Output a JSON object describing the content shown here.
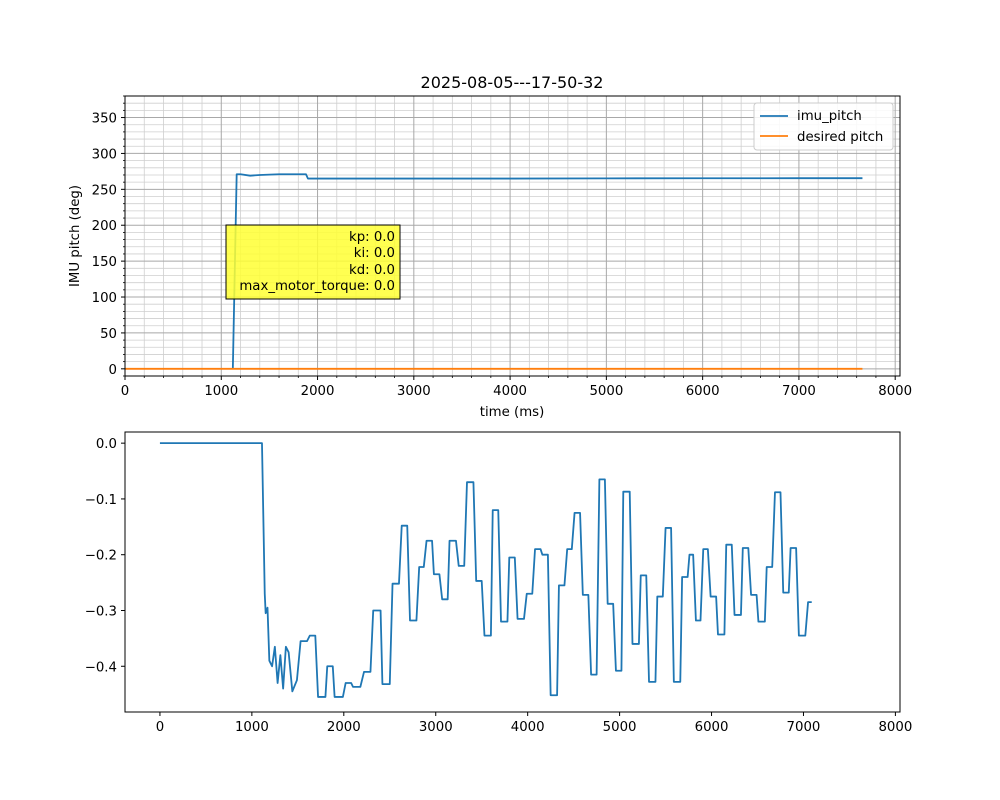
{
  "chart_data": [
    {
      "type": "line",
      "title": "2025-08-05---17-50-32",
      "xlabel": "time (ms)",
      "ylabel": "IMU pitch (deg)",
      "xlim": [
        0,
        8050
      ],
      "ylim": [
        -10,
        380
      ],
      "xticks": [
        0,
        1000,
        2000,
        3000,
        4000,
        5000,
        6000,
        7000,
        8000
      ],
      "yticks": [
        0,
        50,
        100,
        150,
        200,
        250,
        300,
        350
      ],
      "grid": true,
      "legend_position": "top-right",
      "series": [
        {
          "name": "imu_pitch",
          "color": "#1f77b4",
          "points": [
            [
              1120,
              0
            ],
            [
              1160,
              271
            ],
            [
              1200,
              271
            ],
            [
              1300,
              269
            ],
            [
              1400,
              270
            ],
            [
              1600,
              271
            ],
            [
              1800,
              271
            ],
            [
              1880,
              271
            ],
            [
              1900,
              265
            ],
            [
              2500,
              265
            ],
            [
              3200,
              265
            ],
            [
              4000,
              265
            ],
            [
              5000,
              265.3
            ],
            [
              6000,
              265.4
            ],
            [
              7000,
              265.5
            ],
            [
              7660,
              265.5
            ]
          ]
        },
        {
          "name": "desired pitch",
          "color": "#ff7f0e",
          "points": [
            [
              0,
              0
            ],
            [
              7660,
              0
            ]
          ]
        }
      ],
      "annotation": {
        "lines": [
          "kp: 0.0",
          "ki: 0.0",
          "kd: 0.0",
          "max_motor_torque: 0.0"
        ],
        "background": "#ffff33"
      }
    },
    {
      "type": "line",
      "xlim": [
        -380,
        8050
      ],
      "ylim": [
        -0.482,
        0.02
      ],
      "xticks": [
        0,
        1000,
        2000,
        3000,
        4000,
        5000,
        6000,
        7000,
        8000
      ],
      "yticks": [
        0.0,
        -0.1,
        -0.2,
        -0.3,
        -0.4
      ],
      "ytick_labels": [
        "0.0",
        "−0.1",
        "−0.2",
        "−0.3",
        "−0.4"
      ],
      "grid": false,
      "series": [
        {
          "color": "#1f77b4",
          "points": [
            [
              0,
              0
            ],
            [
              1110,
              0
            ],
            [
              1140,
              -0.27
            ],
            [
              1150,
              -0.305
            ],
            [
              1170,
              -0.295
            ],
            [
              1190,
              -0.39
            ],
            [
              1220,
              -0.4
            ],
            [
              1250,
              -0.365
            ],
            [
              1280,
              -0.43
            ],
            [
              1310,
              -0.38
            ],
            [
              1340,
              -0.44
            ],
            [
              1370,
              -0.365
            ],
            [
              1400,
              -0.375
            ],
            [
              1440,
              -0.445
            ],
            [
              1490,
              -0.425
            ],
            [
              1530,
              -0.355
            ],
            [
              1600,
              -0.355
            ],
            [
              1630,
              -0.345
            ],
            [
              1690,
              -0.345
            ],
            [
              1720,
              -0.455
            ],
            [
              1800,
              -0.455
            ],
            [
              1820,
              -0.4
            ],
            [
              1880,
              -0.4
            ],
            [
              1900,
              -0.455
            ],
            [
              1990,
              -0.455
            ],
            [
              2020,
              -0.43
            ],
            [
              2080,
              -0.43
            ],
            [
              2100,
              -0.437
            ],
            [
              2180,
              -0.437
            ],
            [
              2220,
              -0.41
            ],
            [
              2290,
              -0.41
            ],
            [
              2320,
              -0.3
            ],
            [
              2400,
              -0.3
            ],
            [
              2420,
              -0.432
            ],
            [
              2500,
              -0.432
            ],
            [
              2530,
              -0.252
            ],
            [
              2600,
              -0.252
            ],
            [
              2630,
              -0.148
            ],
            [
              2690,
              -0.148
            ],
            [
              2720,
              -0.318
            ],
            [
              2790,
              -0.318
            ],
            [
              2820,
              -0.222
            ],
            [
              2870,
              -0.222
            ],
            [
              2900,
              -0.175
            ],
            [
              2960,
              -0.175
            ],
            [
              2980,
              -0.235
            ],
            [
              3040,
              -0.235
            ],
            [
              3070,
              -0.28
            ],
            [
              3130,
              -0.28
            ],
            [
              3150,
              -0.175
            ],
            [
              3220,
              -0.175
            ],
            [
              3250,
              -0.22
            ],
            [
              3310,
              -0.22
            ],
            [
              3340,
              -0.07
            ],
            [
              3410,
              -0.07
            ],
            [
              3440,
              -0.247
            ],
            [
              3500,
              -0.247
            ],
            [
              3530,
              -0.345
            ],
            [
              3600,
              -0.345
            ],
            [
              3620,
              -0.12
            ],
            [
              3680,
              -0.12
            ],
            [
              3710,
              -0.32
            ],
            [
              3780,
              -0.32
            ],
            [
              3800,
              -0.205
            ],
            [
              3860,
              -0.205
            ],
            [
              3890,
              -0.315
            ],
            [
              3960,
              -0.315
            ],
            [
              3990,
              -0.27
            ],
            [
              4050,
              -0.27
            ],
            [
              4080,
              -0.19
            ],
            [
              4140,
              -0.19
            ],
            [
              4160,
              -0.2
            ],
            [
              4220,
              -0.2
            ],
            [
              4250,
              -0.452
            ],
            [
              4320,
              -0.452
            ],
            [
              4340,
              -0.255
            ],
            [
              4400,
              -0.255
            ],
            [
              4430,
              -0.19
            ],
            [
              4480,
              -0.19
            ],
            [
              4510,
              -0.125
            ],
            [
              4570,
              -0.125
            ],
            [
              4600,
              -0.272
            ],
            [
              4660,
              -0.272
            ],
            [
              4690,
              -0.415
            ],
            [
              4750,
              -0.415
            ],
            [
              4780,
              -0.065
            ],
            [
              4840,
              -0.065
            ],
            [
              4870,
              -0.288
            ],
            [
              4930,
              -0.288
            ],
            [
              4960,
              -0.408
            ],
            [
              5020,
              -0.408
            ],
            [
              5040,
              -0.087
            ],
            [
              5110,
              -0.087
            ],
            [
              5140,
              -0.36
            ],
            [
              5210,
              -0.36
            ],
            [
              5230,
              -0.237
            ],
            [
              5290,
              -0.237
            ],
            [
              5320,
              -0.428
            ],
            [
              5390,
              -0.428
            ],
            [
              5410,
              -0.275
            ],
            [
              5470,
              -0.275
            ],
            [
              5500,
              -0.152
            ],
            [
              5560,
              -0.152
            ],
            [
              5590,
              -0.428
            ],
            [
              5660,
              -0.428
            ],
            [
              5680,
              -0.24
            ],
            [
              5740,
              -0.24
            ],
            [
              5760,
              -0.2
            ],
            [
              5800,
              -0.2
            ],
            [
              5830,
              -0.318
            ],
            [
              5880,
              -0.318
            ],
            [
              5910,
              -0.19
            ],
            [
              5960,
              -0.19
            ],
            [
              5990,
              -0.275
            ],
            [
              6050,
              -0.275
            ],
            [
              6070,
              -0.343
            ],
            [
              6140,
              -0.343
            ],
            [
              6160,
              -0.182
            ],
            [
              6220,
              -0.182
            ],
            [
              6250,
              -0.308
            ],
            [
              6320,
              -0.308
            ],
            [
              6340,
              -0.188
            ],
            [
              6400,
              -0.188
            ],
            [
              6430,
              -0.272
            ],
            [
              6490,
              -0.272
            ],
            [
              6510,
              -0.32
            ],
            [
              6580,
              -0.32
            ],
            [
              6600,
              -0.222
            ],
            [
              6660,
              -0.222
            ],
            [
              6690,
              -0.088
            ],
            [
              6750,
              -0.088
            ],
            [
              6780,
              -0.268
            ],
            [
              6840,
              -0.268
            ],
            [
              6860,
              -0.188
            ],
            [
              6920,
              -0.188
            ],
            [
              6950,
              -0.345
            ],
            [
              7020,
              -0.345
            ],
            [
              7050,
              -0.285
            ],
            [
              7090,
              -0.285
            ]
          ]
        }
      ]
    }
  ]
}
